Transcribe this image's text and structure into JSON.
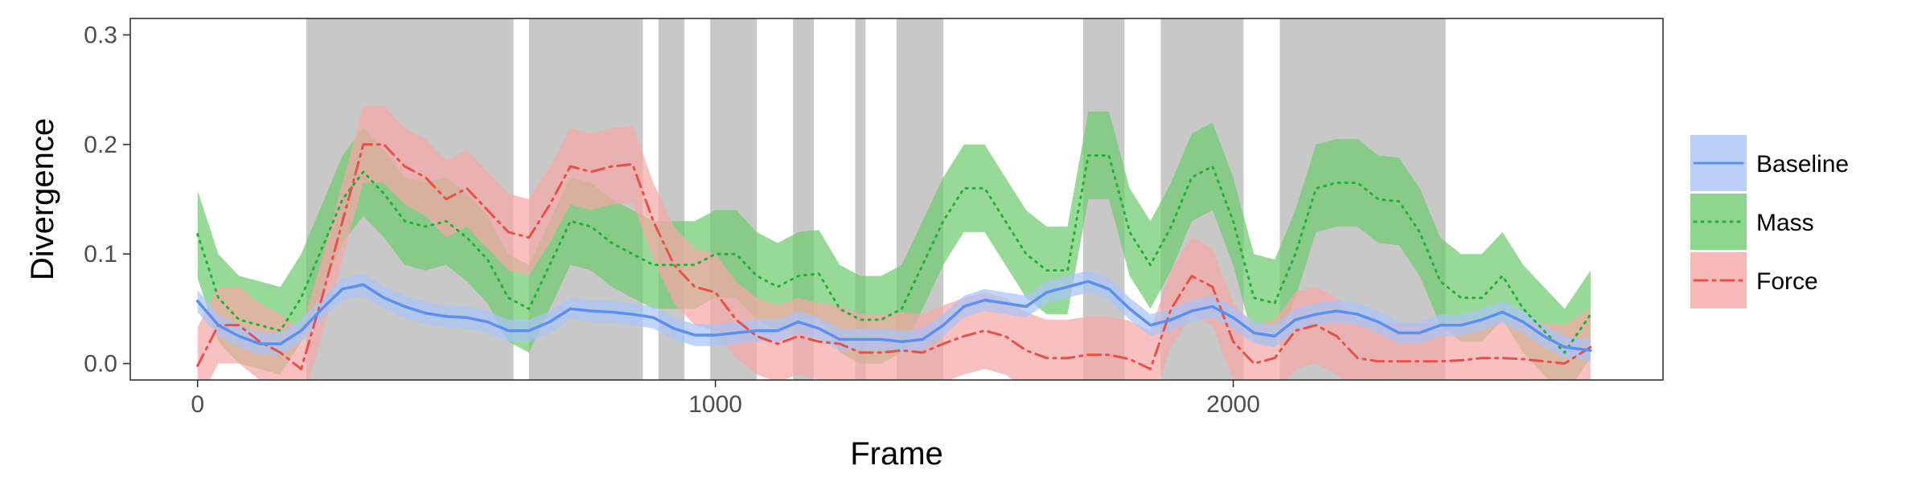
{
  "chart_data": {
    "type": "line",
    "xlabel": "Frame",
    "ylabel": "Divergence",
    "xlim": [
      -130,
      2830
    ],
    "ylim": [
      -0.015,
      0.315
    ],
    "x_ticks": [
      0,
      1000,
      2000
    ],
    "x_tick_labels": [
      "0",
      "1000",
      "2000"
    ],
    "y_ticks": [
      0.0,
      0.1,
      0.2,
      0.3
    ],
    "y_tick_labels": [
      "0.0",
      "0.1",
      "0.2",
      "0.3"
    ],
    "grid": false,
    "legend_position": "right",
    "shaded_intervals": [
      [
        210,
        610
      ],
      [
        640,
        860
      ],
      [
        890,
        940
      ],
      [
        990,
        1080
      ],
      [
        1150,
        1190
      ],
      [
        1270,
        1290
      ],
      [
        1350,
        1440
      ],
      [
        1710,
        1790
      ],
      [
        1860,
        2020
      ],
      [
        2090,
        2410
      ]
    ],
    "x": [
      0,
      40,
      80,
      120,
      160,
      200,
      240,
      280,
      320,
      360,
      400,
      440,
      480,
      520,
      560,
      600,
      640,
      680,
      720,
      760,
      800,
      840,
      880,
      920,
      960,
      1000,
      1040,
      1080,
      1120,
      1160,
      1200,
      1240,
      1280,
      1320,
      1360,
      1400,
      1440,
      1480,
      1520,
      1560,
      1600,
      1640,
      1680,
      1720,
      1760,
      1800,
      1840,
      1880,
      1920,
      1960,
      2000,
      2040,
      2080,
      2120,
      2160,
      2200,
      2240,
      2280,
      2320,
      2360,
      2400,
      2440,
      2480,
      2520,
      2560,
      2600,
      2640,
      2690
    ],
    "series": [
      {
        "name": "Baseline",
        "color": "#5b8ff0",
        "fill": "#a9c4f7",
        "dash": "",
        "values": [
          0.057,
          0.035,
          0.025,
          0.018,
          0.018,
          0.03,
          0.05,
          0.068,
          0.072,
          0.06,
          0.052,
          0.046,
          0.043,
          0.042,
          0.038,
          0.03,
          0.03,
          0.038,
          0.05,
          0.048,
          0.047,
          0.045,
          0.042,
          0.032,
          0.026,
          0.026,
          0.028,
          0.03,
          0.03,
          0.038,
          0.032,
          0.022,
          0.022,
          0.022,
          0.02,
          0.022,
          0.035,
          0.052,
          0.058,
          0.055,
          0.052,
          0.065,
          0.07,
          0.075,
          0.068,
          0.05,
          0.035,
          0.04,
          0.048,
          0.052,
          0.042,
          0.028,
          0.025,
          0.04,
          0.045,
          0.048,
          0.045,
          0.038,
          0.028,
          0.028,
          0.035,
          0.035,
          0.04,
          0.047,
          0.038,
          0.025,
          0.015,
          0.012
        ]
      },
      {
        "name": "Mass",
        "color": "#1fb23a",
        "fill": "#6fcb6f",
        "dash": "2,7",
        "values": [
          0.118,
          0.06,
          0.04,
          0.035,
          0.03,
          0.06,
          0.105,
          0.15,
          0.175,
          0.155,
          0.13,
          0.125,
          0.13,
          0.115,
          0.095,
          0.06,
          0.05,
          0.09,
          0.13,
          0.125,
          0.11,
          0.1,
          0.09,
          0.09,
          0.09,
          0.1,
          0.1,
          0.08,
          0.07,
          0.08,
          0.082,
          0.05,
          0.04,
          0.04,
          0.05,
          0.09,
          0.13,
          0.16,
          0.16,
          0.13,
          0.1,
          0.085,
          0.085,
          0.19,
          0.19,
          0.12,
          0.09,
          0.125,
          0.17,
          0.18,
          0.13,
          0.06,
          0.055,
          0.1,
          0.16,
          0.165,
          0.165,
          0.15,
          0.148,
          0.12,
          0.075,
          0.06,
          0.06,
          0.08,
          0.05,
          0.03,
          0.01,
          0.045
        ]
      },
      {
        "name": "Force",
        "color": "#e8504a",
        "fill": "#f5a8a5",
        "dash": "16,7,3,7",
        "values": [
          -0.002,
          0.035,
          0.035,
          0.02,
          0.01,
          -0.005,
          0.06,
          0.13,
          0.2,
          0.2,
          0.18,
          0.17,
          0.15,
          0.16,
          0.14,
          0.12,
          0.115,
          0.145,
          0.18,
          0.175,
          0.18,
          0.182,
          0.13,
          0.09,
          0.07,
          0.065,
          0.04,
          0.025,
          0.018,
          0.025,
          0.02,
          0.018,
          0.01,
          0.01,
          0.012,
          0.01,
          0.018,
          0.025,
          0.03,
          0.025,
          0.012,
          0.005,
          0.005,
          0.008,
          0.008,
          0.004,
          -0.005,
          0.05,
          0.08,
          0.07,
          0.02,
          0.0,
          0.005,
          0.03,
          0.035,
          0.025,
          0.005,
          0.002,
          0.002,
          0.002,
          0.002,
          0.003,
          0.005,
          0.005,
          0.004,
          0.002,
          0.0,
          0.015
        ]
      }
    ],
    "band_halfwidths": [
      0.01,
      0.04,
      0.035
    ]
  }
}
